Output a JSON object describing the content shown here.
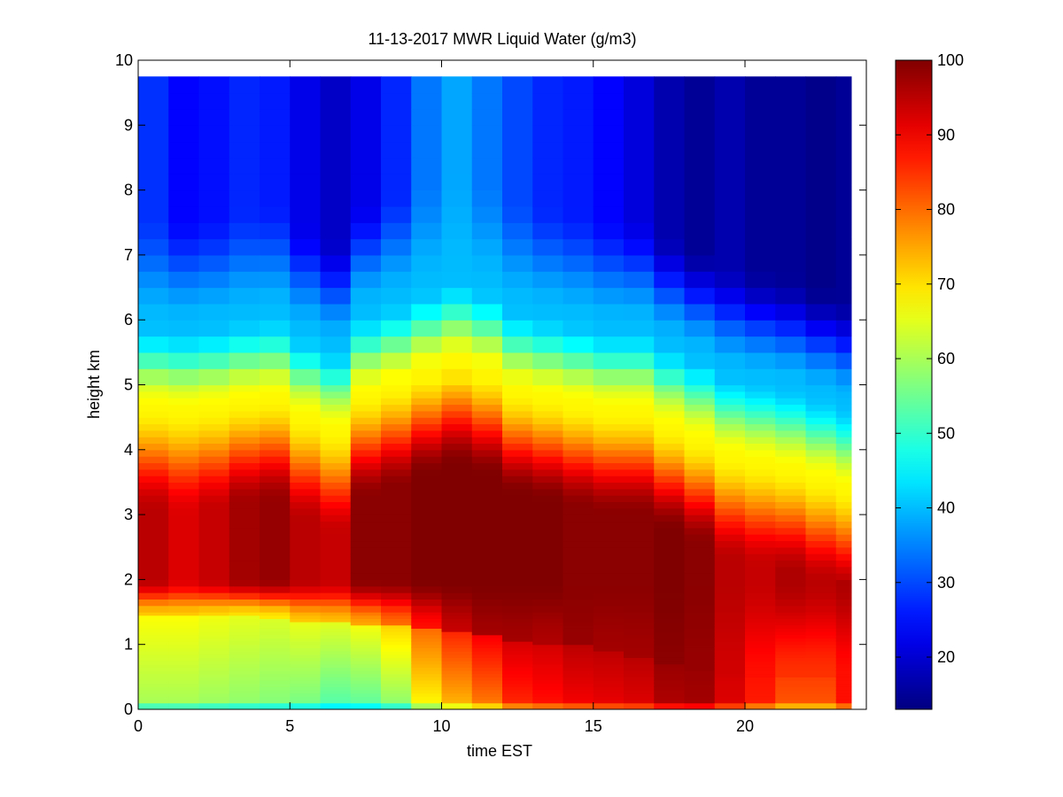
{
  "chart_data": {
    "type": "heatmap",
    "title": "11-13-2017 MWR Liquid Water (g/m3)",
    "xlabel": "time EST",
    "ylabel": "height km",
    "xlim": [
      0,
      24
    ],
    "ylim": [
      0,
      10
    ],
    "x_ticks": [
      0,
      5,
      10,
      15,
      20
    ],
    "y_ticks": [
      0,
      1,
      2,
      3,
      4,
      5,
      6,
      7,
      8,
      9,
      10
    ],
    "colorbar": {
      "colormap": "jet",
      "range": [
        13,
        100
      ],
      "ticks": [
        20,
        30,
        40,
        50,
        60,
        70,
        80,
        90,
        100
      ]
    },
    "grid": false,
    "heights_km": [
      0.0,
      0.05,
      0.1,
      0.15,
      0.2,
      0.25,
      0.3,
      0.35,
      0.4,
      0.45,
      0.5,
      0.55,
      0.6,
      0.65,
      0.7,
      0.75,
      0.8,
      0.85,
      0.9,
      0.95,
      1.0,
      1.05,
      1.1,
      1.15,
      1.2,
      1.25,
      1.3,
      1.35,
      1.4,
      1.45,
      1.5,
      1.6,
      1.7,
      1.8,
      1.9,
      2.0,
      2.1,
      2.2,
      2.3,
      2.4,
      2.5,
      2.6,
      2.7,
      2.8,
      2.9,
      3.0,
      3.1,
      3.2,
      3.3,
      3.4,
      3.5,
      3.6,
      3.7,
      3.8,
      3.9,
      4.0,
      4.1,
      4.2,
      4.3,
      4.4,
      4.5,
      4.6,
      4.7,
      4.8,
      4.9,
      5.0,
      5.25,
      5.5,
      5.75,
      6.0,
      6.25,
      6.5,
      6.75,
      7.0,
      7.25,
      7.5,
      7.75,
      8.0,
      8.25,
      8.5,
      8.75,
      9.0,
      9.25,
      9.5,
      9.75
    ],
    "times_est": [
      0.0,
      1.0,
      2.0,
      3.0,
      4.0,
      5.0,
      6.0,
      7.0,
      8.0,
      9.0,
      10.0,
      11.0,
      12.0,
      13.0,
      14.0,
      15.0,
      16.0,
      17.0,
      18.0,
      19.0,
      20.0,
      21.0,
      22.0,
      23.0
    ],
    "profiles": [
      {
        "time": 0,
        "lowfill": 60,
        "base": 72,
        "bfloor": 1.45,
        "peak": 95,
        "top": 4.65,
        "upper": 28
      },
      {
        "time": 1,
        "lowfill": 60,
        "base": 72,
        "bfloor": 1.45,
        "peak": 92,
        "top": 4.6,
        "upper": 24
      },
      {
        "time": 2,
        "lowfill": 59,
        "base": 71,
        "bfloor": 1.45,
        "peak": 94,
        "top": 4.65,
        "upper": 25
      },
      {
        "time": 3,
        "lowfill": 58,
        "base": 70,
        "bfloor": 1.45,
        "peak": 97,
        "top": 4.75,
        "upper": 27
      },
      {
        "time": 4,
        "lowfill": 57,
        "base": 69,
        "bfloor": 1.4,
        "peak": 98,
        "top": 4.8,
        "upper": 26
      },
      {
        "time": 5,
        "lowfill": 56,
        "base": 72,
        "bfloor": 1.35,
        "peak": 95,
        "top": 4.5,
        "upper": 22
      },
      {
        "time": 6,
        "lowfill": 53,
        "base": 73,
        "bfloor": 1.35,
        "peak": 94,
        "top": 4.3,
        "upper": 19
      },
      {
        "time": 7,
        "lowfill": 54,
        "base": 75,
        "bfloor": 1.3,
        "peak": 99,
        "top": 4.85,
        "upper": 22
      },
      {
        "time": 8,
        "lowfill": 58,
        "base": 80,
        "bfloor": 1.3,
        "peak": 99,
        "top": 5.0,
        "upper": 27
      },
      {
        "time": 9,
        "lowfill": 68,
        "base": 88,
        "bfloor": 1.25,
        "peak": 100,
        "top": 5.2,
        "upper": 34
      },
      {
        "time": 10,
        "lowfill": 74,
        "base": 94,
        "bfloor": 1.2,
        "peak": 100,
        "top": 5.35,
        "upper": 38
      },
      {
        "time": 11,
        "lowfill": 79,
        "base": 97,
        "bfloor": 1.15,
        "peak": 100,
        "top": 5.2,
        "upper": 34
      },
      {
        "time": 12,
        "lowfill": 86,
        "base": 97,
        "bfloor": 1.05,
        "peak": 100,
        "top": 4.9,
        "upper": 30
      },
      {
        "time": 13,
        "lowfill": 88,
        "base": 96,
        "bfloor": 1.0,
        "peak": 100,
        "top": 4.8,
        "upper": 27
      },
      {
        "time": 14,
        "lowfill": 90,
        "base": 98,
        "bfloor": 1.0,
        "peak": 99,
        "top": 4.7,
        "upper": 26
      },
      {
        "time": 15,
        "lowfill": 91,
        "base": 97,
        "bfloor": 0.9,
        "peak": 99,
        "top": 4.6,
        "upper": 24
      },
      {
        "time": 16,
        "lowfill": 92,
        "base": 97,
        "bfloor": 0.8,
        "peak": 99,
        "top": 4.6,
        "upper": 21
      },
      {
        "time": 17,
        "lowfill": 96,
        "base": 99,
        "bfloor": 0.7,
        "peak": 100,
        "top": 4.35,
        "upper": 17
      },
      {
        "time": 18,
        "lowfill": 97,
        "base": 98,
        "bfloor": 0.6,
        "peak": 99,
        "top": 4.15,
        "upper": 15
      },
      {
        "time": 19,
        "lowfill": 92,
        "base": 93,
        "bfloor": 0.5,
        "peak": 95,
        "top": 3.9,
        "upper": 17
      },
      {
        "time": 20,
        "lowfill": 87,
        "base": 88,
        "bfloor": 0.5,
        "peak": 94,
        "top": 3.8,
        "upper": 15
      },
      {
        "time": 21,
        "lowfill": 82,
        "base": 85,
        "bfloor": 0.5,
        "peak": 96,
        "top": 3.7,
        "upper": 15
      },
      {
        "time": 22,
        "lowfill": 82,
        "base": 85,
        "bfloor": 0.5,
        "peak": 95,
        "top": 3.55,
        "upper": 14
      },
      {
        "time": 23,
        "lowfill": 88,
        "base": 88,
        "bfloor": 0.5,
        "peak": 96,
        "top": 3.4,
        "upper": 15
      }
    ]
  }
}
